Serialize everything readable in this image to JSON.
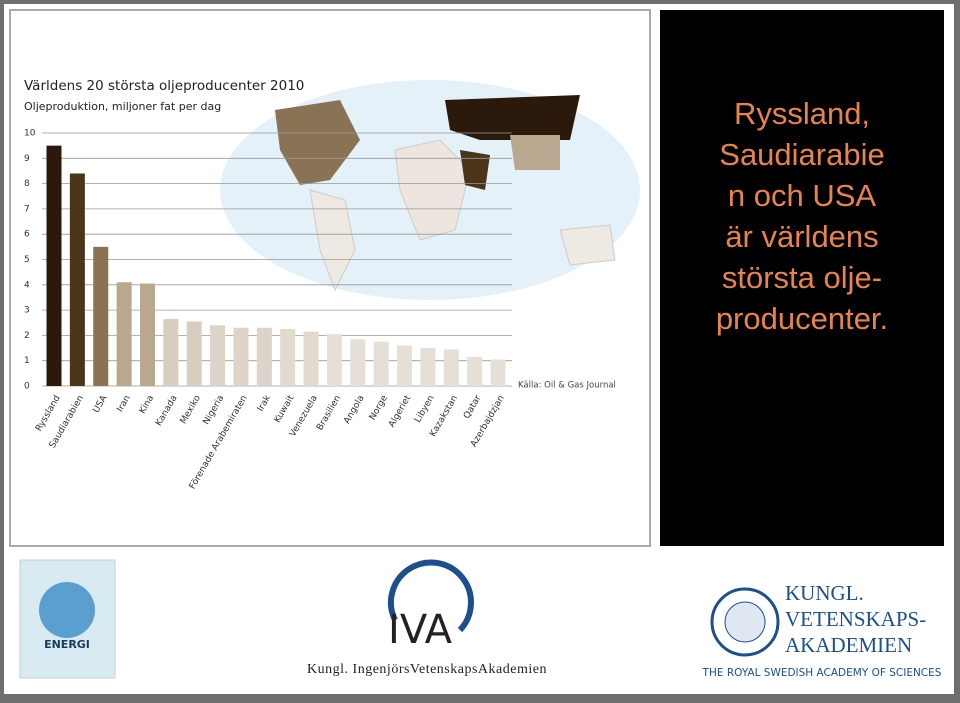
{
  "chart_data": {
    "type": "bar",
    "title": "Världens 20 största oljeproducenter 2010",
    "subtitle": "Oljeproduktion, miljoner fat per dag",
    "source": "Källa: Oil & Gas Journal",
    "categories": [
      "Ryssland",
      "Saudiarabien",
      "USA",
      "Iran",
      "Kina",
      "Kanada",
      "Mexiko",
      "Nigeria",
      "Förenade Arabemiraten",
      "Irak",
      "Kuwait",
      "Venezuela",
      "Brasilien",
      "Angola",
      "Norge",
      "Algeriet",
      "Libyen",
      "Kazakstan",
      "Qatar",
      "Azerbajdzjan"
    ],
    "values": [
      9.5,
      8.4,
      5.5,
      4.1,
      4.05,
      2.65,
      2.55,
      2.4,
      2.3,
      2.3,
      2.25,
      2.15,
      2.05,
      1.85,
      1.75,
      1.6,
      1.5,
      1.45,
      1.15,
      1.05
    ],
    "colors": [
      "#2b1a0b",
      "#4b3519",
      "#8a7255",
      "#b9a78f",
      "#b9a78f",
      "#d9cdbf",
      "#d9cdbf",
      "#ddd3c8",
      "#ddd3c8",
      "#ddd3c8",
      "#e2d9cf",
      "#e2d9cf",
      "#e6dfd7",
      "#e6dfd7",
      "#e6dfd7",
      "#e6dfd7",
      "#e6dfd7",
      "#e6dfd7",
      "#e6dfd7",
      "#e6dfd7"
    ],
    "ylim": [
      0,
      10
    ],
    "yticks": [
      0,
      1,
      2,
      3,
      4,
      5,
      6,
      7,
      8,
      9,
      10
    ],
    "grid": true
  },
  "slide": {
    "lines": [
      "Ryssland,",
      "Saudiarabie",
      "n och USA",
      "är världens",
      "största olje-",
      "producenter."
    ]
  },
  "logos": {
    "energi": "ENERGI",
    "iva": "IVA",
    "iva_name": "Kungl. IngenjörsVetenskapsAkademien",
    "kva": [
      "KUNGL.",
      "VETENSKAPS-",
      "AKADEMIEN"
    ],
    "kva_en": "THE ROYAL SWEDISH ACADEMY OF SCIENCES"
  }
}
